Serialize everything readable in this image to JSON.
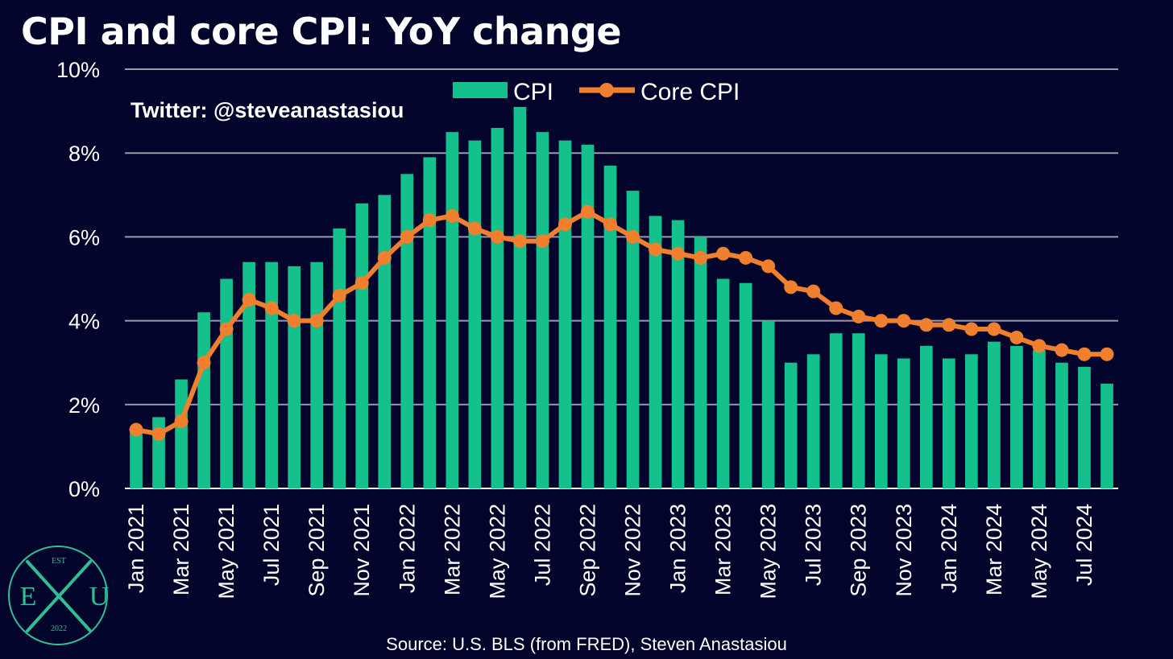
{
  "twitter_handle": "Twitter: @steveanastasiou",
  "source": "Source: U.S. BLS (from FRED), Steven Anastasiou",
  "logo": {
    "top": "EST",
    "left": "E",
    "right": "U",
    "bottom": "2022"
  },
  "colors": {
    "background": "#02042b",
    "cpi": "#14c08b",
    "core": "#f07f2e",
    "grid": "#9a9aab",
    "logo": "#2fbf94"
  },
  "chart_data": {
    "type": "bar",
    "title": "CPI and core CPI: YoY change",
    "xlabel": "",
    "ylabel": "",
    "ylim": [
      0,
      10
    ],
    "yticks": [
      "0%",
      "2%",
      "4%",
      "6%",
      "8%",
      "10%"
    ],
    "grid": true,
    "legend_position": "top-center",
    "categories": [
      "Jan 2021",
      "Feb 2021",
      "Mar 2021",
      "Apr 2021",
      "May 2021",
      "Jun 2021",
      "Jul 2021",
      "Aug 2021",
      "Sep 2021",
      "Oct 2021",
      "Nov 2021",
      "Dec 2021",
      "Jan 2022",
      "Feb 2022",
      "Mar 2022",
      "Apr 2022",
      "May 2022",
      "Jun 2022",
      "Jul 2022",
      "Aug 2022",
      "Sep 2022",
      "Oct 2022",
      "Nov 2022",
      "Dec 2022",
      "Jan 2023",
      "Feb 2023",
      "Mar 2023",
      "Apr 2023",
      "May 2023",
      "Jun 2023",
      "Jul 2023",
      "Aug 2023",
      "Sep 2023",
      "Oct 2023",
      "Nov 2023",
      "Dec 2023",
      "Jan 2024",
      "Feb 2024",
      "Mar 2024",
      "Apr 2024",
      "May 2024",
      "Jun 2024",
      "Jul 2024",
      "Aug 2024"
    ],
    "xtick_labels": [
      "Jan 2021",
      "Mar 2021",
      "May 2021",
      "Jul 2021",
      "Sep 2021",
      "Nov 2021",
      "Jan 2022",
      "Mar 2022",
      "May 2022",
      "Jul 2022",
      "Sep 2022",
      "Nov 2022",
      "Jan 2023",
      "Mar 2023",
      "May 2023",
      "Jul 2023",
      "Sep 2023",
      "Nov 2023",
      "Jan 2024",
      "Mar 2024",
      "May 2024",
      "Jul 2024"
    ],
    "series": [
      {
        "name": "CPI",
        "type": "bar",
        "values": [
          1.4,
          1.7,
          2.6,
          4.2,
          5.0,
          5.4,
          5.4,
          5.3,
          5.4,
          6.2,
          6.8,
          7.0,
          7.5,
          7.9,
          8.5,
          8.3,
          8.6,
          9.1,
          8.5,
          8.3,
          8.2,
          7.7,
          7.1,
          6.5,
          6.4,
          6.0,
          5.0,
          4.9,
          4.0,
          3.0,
          3.2,
          3.7,
          3.7,
          3.2,
          3.1,
          3.4,
          3.1,
          3.2,
          3.5,
          3.4,
          3.3,
          3.0,
          2.9,
          2.5
        ]
      },
      {
        "name": "Core CPI",
        "type": "line",
        "values": [
          1.4,
          1.3,
          1.6,
          3.0,
          3.8,
          4.5,
          4.3,
          4.0,
          4.0,
          4.6,
          4.9,
          5.5,
          6.0,
          6.4,
          6.5,
          6.2,
          6.0,
          5.9,
          5.9,
          6.3,
          6.6,
          6.3,
          6.0,
          5.7,
          5.6,
          5.5,
          5.6,
          5.5,
          5.3,
          4.8,
          4.7,
          4.3,
          4.1,
          4.0,
          4.0,
          3.9,
          3.9,
          3.8,
          3.8,
          3.6,
          3.4,
          3.3,
          3.2,
          3.2
        ]
      }
    ]
  }
}
